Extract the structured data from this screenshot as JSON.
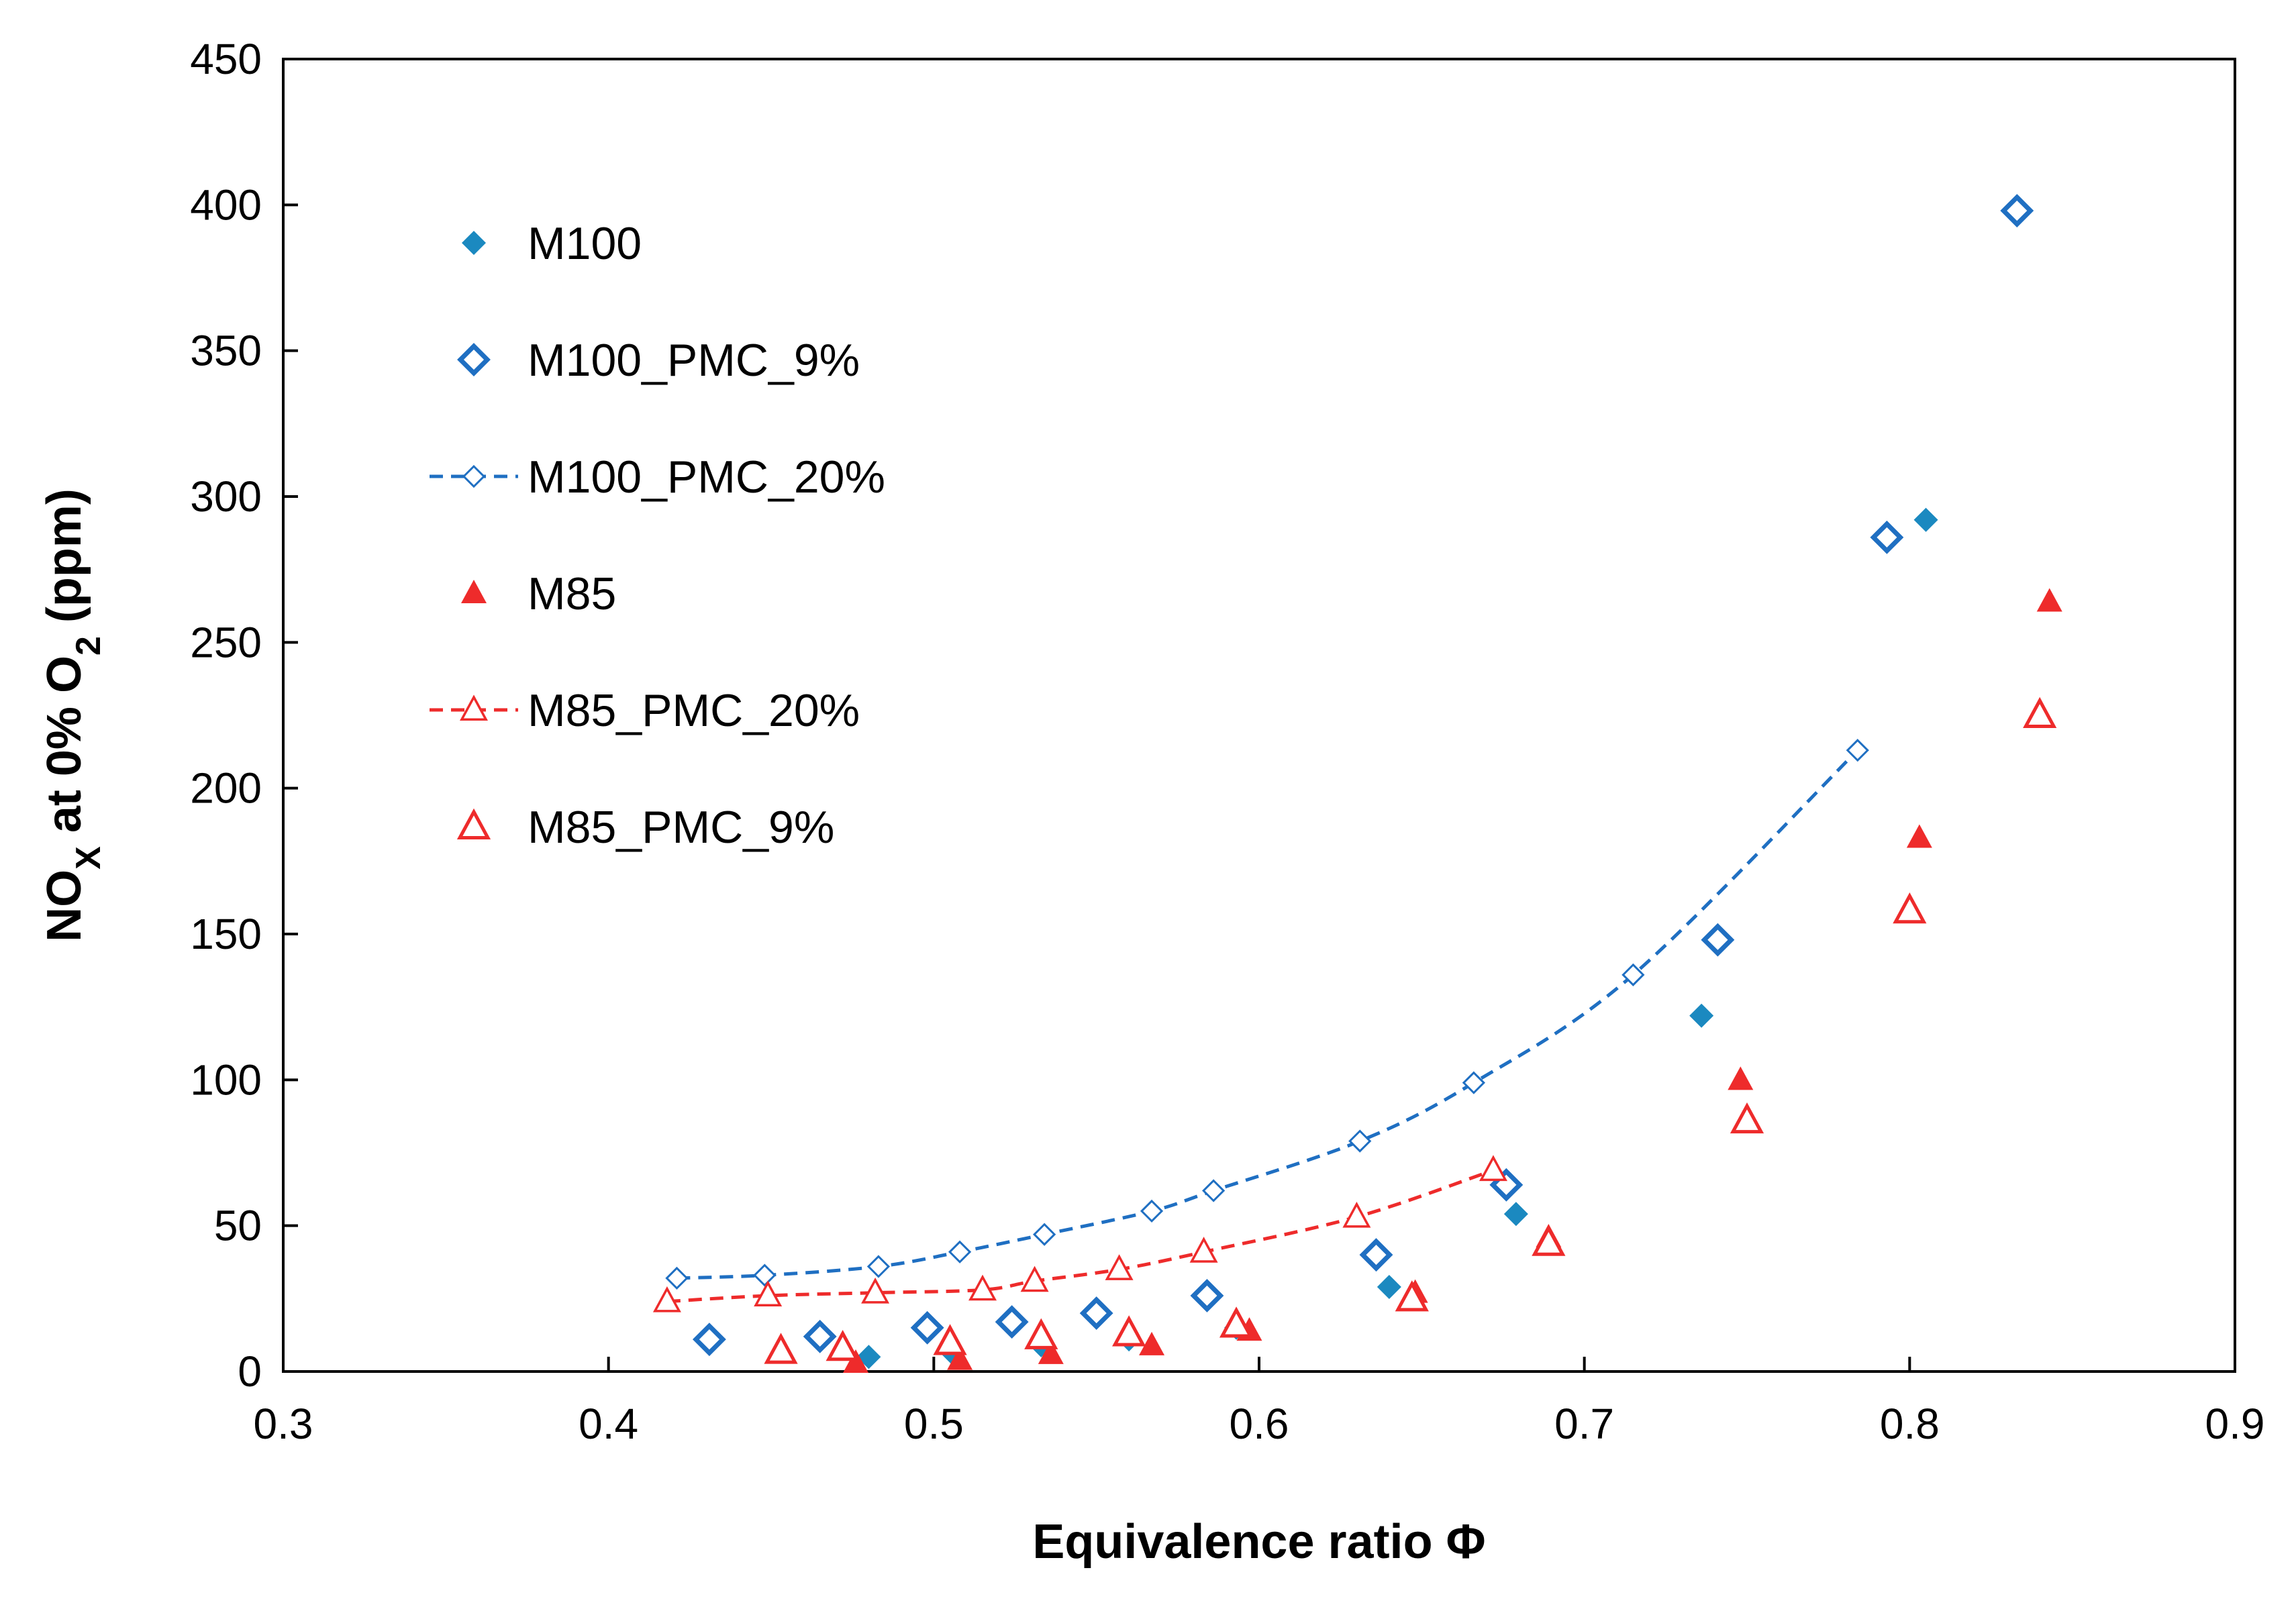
{
  "chart_data": {
    "type": "scatter",
    "title": "",
    "xlabel": "Equivalence ratio Φ",
    "ylabel": {
      "main": "NO",
      "sub1": "X",
      "mid": " at 0% O",
      "sub2": "2",
      "tail": " (ppm)"
    },
    "xlim": [
      0.3,
      0.9
    ],
    "ylim": [
      0,
      450
    ],
    "xticks": [
      "0.3",
      "0.4",
      "0.5",
      "0.6",
      "0.7",
      "0.8",
      "0.9"
    ],
    "yticks": [
      "0",
      "50",
      "100",
      "150",
      "200",
      "250",
      "300",
      "350",
      "400",
      "450"
    ],
    "grid": false,
    "legend_position": "top-left inside",
    "colors": {
      "blue": "#1f6fc2",
      "teal": "#1b89c0",
      "red": "#ee2b2b"
    },
    "series": [
      {
        "name": "M100",
        "marker": "diamond-filled",
        "color": "#1b89c0",
        "line": false,
        "points": [
          [
            0.48,
            5
          ],
          [
            0.506,
            6
          ],
          [
            0.533,
            9
          ],
          [
            0.56,
            11
          ],
          [
            0.593,
            15
          ],
          [
            0.64,
            29
          ],
          [
            0.679,
            54
          ],
          [
            0.736,
            122
          ],
          [
            0.805,
            292
          ]
        ]
      },
      {
        "name": "M100_PMC_9%",
        "marker": "diamond-open",
        "color": "#1f6fc2",
        "line": false,
        "points": [
          [
            0.431,
            11
          ],
          [
            0.465,
            12
          ],
          [
            0.498,
            15
          ],
          [
            0.524,
            17
          ],
          [
            0.55,
            20
          ],
          [
            0.584,
            26
          ],
          [
            0.636,
            40
          ],
          [
            0.676,
            64
          ],
          [
            0.741,
            148
          ],
          [
            0.793,
            286
          ],
          [
            0.833,
            398
          ]
        ]
      },
      {
        "name": "M100_PMC_20%",
        "marker": "diamond-open-small",
        "color": "#1f6fc2",
        "line": true,
        "points": [
          [
            0.421,
            32
          ],
          [
            0.448,
            33
          ],
          [
            0.483,
            36
          ],
          [
            0.508,
            41
          ],
          [
            0.534,
            47
          ],
          [
            0.567,
            55
          ],
          [
            0.586,
            62
          ],
          [
            0.631,
            79
          ],
          [
            0.666,
            99
          ],
          [
            0.715,
            136
          ],
          [
            0.784,
            213
          ]
        ]
      },
      {
        "name": "M85",
        "marker": "triangle-filled",
        "color": "#ee2b2b",
        "line": false,
        "points": [
          [
            0.476,
            3
          ],
          [
            0.508,
            4
          ],
          [
            0.536,
            6
          ],
          [
            0.567,
            9
          ],
          [
            0.597,
            14
          ],
          [
            0.648,
            27
          ],
          [
            0.689,
            46
          ],
          [
            0.748,
            100
          ],
          [
            0.803,
            183
          ],
          [
            0.843,
            264
          ]
        ]
      },
      {
        "name": "M85_PMC_20%",
        "marker": "triangle-open-small",
        "color": "#ee2b2b",
        "line": true,
        "points": [
          [
            0.418,
            24
          ],
          [
            0.449,
            26
          ],
          [
            0.482,
            27
          ],
          [
            0.515,
            28
          ],
          [
            0.531,
            31
          ],
          [
            0.557,
            35
          ],
          [
            0.583,
            41
          ],
          [
            0.63,
            53
          ],
          [
            0.672,
            69
          ]
        ]
      },
      {
        "name": "M85_PMC_9%",
        "marker": "triangle-open",
        "color": "#ee2b2b",
        "line": false,
        "points": [
          [
            0.453,
            7
          ],
          [
            0.472,
            8
          ],
          [
            0.505,
            10
          ],
          [
            0.533,
            12
          ],
          [
            0.56,
            13
          ],
          [
            0.593,
            16
          ],
          [
            0.647,
            25
          ],
          [
            0.689,
            44
          ],
          [
            0.75,
            86
          ],
          [
            0.8,
            158
          ],
          [
            0.84,
            225
          ]
        ]
      }
    ]
  }
}
